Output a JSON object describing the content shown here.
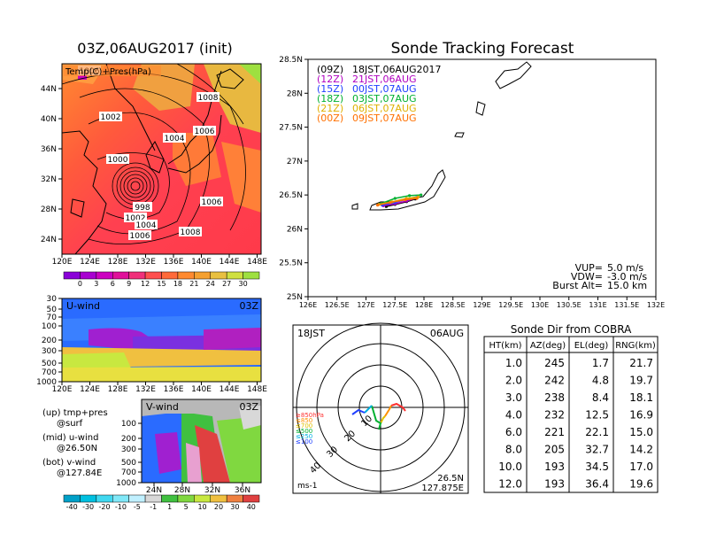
{
  "main_title": "03Z,06AUG2017 (init)",
  "right_title": "Sonde Tracking Forecast",
  "temp_map": {
    "label": "Temp(C)+Pres(hPa)",
    "lat_ticks": [
      "44N",
      "40N",
      "36N",
      "32N",
      "28N",
      "24N"
    ],
    "lon_ticks": [
      "120E",
      "124E",
      "128E",
      "132E",
      "136E",
      "140E",
      "144E",
      "148E"
    ],
    "isobar_labels": [
      "1006",
      "1008",
      "1002",
      "1006",
      "1004",
      "1000",
      "998",
      "1002",
      "1004",
      "1006",
      "1006",
      "1008"
    ],
    "colorbar_ticks": [
      "0",
      "3",
      "6",
      "9",
      "12",
      "15",
      "18",
      "21",
      "24",
      "27",
      "30"
    ],
    "colorbar_colors": [
      "#8a00d8",
      "#a800d0",
      "#cc00c0",
      "#e0109a",
      "#f0307a",
      "#ff4f4f",
      "#ff6a3a",
      "#ff8a30",
      "#f5a030",
      "#e8c040",
      "#cfe040",
      "#9ee040"
    ]
  },
  "uwind": {
    "label": "U-wind",
    "time": "03Z",
    "y_ticks": [
      "30",
      "50",
      "70",
      "100",
      "200",
      "300",
      "500",
      "700",
      "1000"
    ],
    "lon_ticks": [
      "120E",
      "124E",
      "128E",
      "132E",
      "136E",
      "140E",
      "144E",
      "148E"
    ]
  },
  "vwind": {
    "label": "V-wind",
    "time": "03Z",
    "y_ticks": [
      "100",
      "200",
      "300",
      "500",
      "700",
      "1000"
    ],
    "lat_ticks": [
      "24N",
      "28N",
      "32N",
      "36N"
    ]
  },
  "legend_notes": [
    {
      "line1": "(up) tmp+pres",
      "line2": "@surf"
    },
    {
      "line1": "(mid) u-wind",
      "line2": "@26.50N"
    },
    {
      "line1": "(bot) v-wind",
      "line2": "@127.84E"
    }
  ],
  "wind_colorbar": {
    "ticks": [
      "-40",
      "-30",
      "-20",
      "-10",
      "-5",
      "-1",
      "1",
      "5",
      "10",
      "20",
      "30",
      "40"
    ],
    "colors": [
      "#00a0c8",
      "#00c0e0",
      "#40d8f0",
      "#80e8f8",
      "#c0f0ff",
      "#d8d8d8",
      "#40c040",
      "#80d840",
      "#c8e840",
      "#f0c040",
      "#f08040",
      "#e04040"
    ]
  },
  "tracking": {
    "lat_ticks": [
      "28.5N",
      "28N",
      "27.5N",
      "27N",
      "26.5N",
      "26N",
      "25.5N",
      "25N"
    ],
    "lon_ticks": [
      "126E",
      "126.5E",
      "127E",
      "127.5E",
      "128E",
      "128.5E",
      "129E",
      "129.5E",
      "130E",
      "130.5E",
      "131E",
      "131.5E",
      "132E"
    ],
    "legend": [
      {
        "code": "(09Z)",
        "text": "18JST,06AUG2017",
        "color": "#000000"
      },
      {
        "code": "(12Z)",
        "text": "21JST,06AUG",
        "color": "#b000c0"
      },
      {
        "code": "(15Z)",
        "text": "00JST,07AUG",
        "color": "#2040ff"
      },
      {
        "code": "(18Z)",
        "text": "03JST,07AUG",
        "color": "#00b030"
      },
      {
        "code": "(21Z)",
        "text": "06JST,07AUG",
        "color": "#e0b000"
      },
      {
        "code": "(00Z)",
        "text": "09JST,07AUG",
        "color": "#ff7000"
      }
    ],
    "params": [
      {
        "label": "VUP=",
        "value": "5.0 m/s"
      },
      {
        "label": "VDW=",
        "value": "-3.0 m/s"
      },
      {
        "label": "Burst Alt=",
        "value": "15.0 km"
      }
    ]
  },
  "polar": {
    "time_label": "18JST",
    "date_label": "06AUG",
    "ring_labels": [
      "10",
      "20",
      "30",
      "40"
    ],
    "level_legend": [
      {
        "text": "≥850hPa",
        "color": "#ff3030"
      },
      {
        "text": "≤850",
        "color": "#ff9000"
      },
      {
        "text": "≤700",
        "color": "#e0c000"
      },
      {
        "text": "≤500",
        "color": "#00b030"
      },
      {
        "text": "≤250",
        "color": "#00b0e0"
      },
      {
        "text": "≤100",
        "color": "#2040ff"
      }
    ],
    "unit": "ms-1",
    "lat": "26.5N",
    "lon": "127.875E"
  },
  "sonde_table": {
    "title": "Sonde Dir from COBRA",
    "headers": [
      "HT(km)",
      "AZ(deg)",
      "EL(deg)",
      "RNG(km)"
    ],
    "rows": [
      [
        "1.0",
        "245",
        "1.7",
        "21.7"
      ],
      [
        "2.0",
        "242",
        "4.8",
        "19.7"
      ],
      [
        "3.0",
        "238",
        "8.4",
        "18.1"
      ],
      [
        "4.0",
        "232",
        "12.5",
        "16.9"
      ],
      [
        "6.0",
        "221",
        "22.1",
        "15.0"
      ],
      [
        "8.0",
        "205",
        "32.7",
        "14.2"
      ],
      [
        "10.0",
        "193",
        "34.5",
        "17.0"
      ],
      [
        "12.0",
        "193",
        "36.4",
        "19.6"
      ]
    ]
  },
  "chart_data": [
    {
      "type": "heatmap",
      "title": "03Z,06AUG2017 (init)",
      "subtitle": "Temp(C)+Pres(hPa)",
      "x_range": [
        120,
        150
      ],
      "y_range": [
        22,
        47
      ],
      "color_levels": [
        0,
        3,
        6,
        9,
        12,
        15,
        18,
        21,
        24,
        27,
        30
      ],
      "contour_labels_hPa": [
        1006,
        1008,
        1002,
        1006,
        1004,
        1000,
        998,
        1002,
        1004,
        1006,
        1006,
        1008
      ]
    },
    {
      "type": "line",
      "title": "Sonde Tracking Forecast",
      "x_range": [
        126,
        132
      ],
      "y_range": [
        25,
        28.5
      ],
      "series": [
        {
          "name": "(09Z) 18JST,06AUG2017",
          "x": [
            127.35,
            127.5,
            127.7,
            127.85
          ],
          "y": [
            26.33,
            26.36,
            26.4,
            26.44
          ]
        },
        {
          "name": "(12Z) 21JST,06AUG",
          "x": [
            127.3,
            127.5,
            127.7,
            127.88
          ],
          "y": [
            26.34,
            26.37,
            26.41,
            26.46
          ]
        },
        {
          "name": "(15Z) 00JST,07AUG",
          "x": [
            127.28,
            127.5,
            127.72,
            127.9
          ],
          "y": [
            26.35,
            26.39,
            26.44,
            26.48
          ]
        },
        {
          "name": "(18Z) 03JST,07AUG",
          "x": [
            127.25,
            127.5,
            127.75,
            127.95
          ],
          "y": [
            26.37,
            26.45,
            26.49,
            26.5
          ]
        },
        {
          "name": "(21Z) 06JST,07AUG",
          "x": [
            127.22,
            127.45,
            127.7,
            127.9
          ],
          "y": [
            26.36,
            26.4,
            26.45,
            26.47
          ]
        },
        {
          "name": "(00Z) 09JST,07AUG",
          "x": [
            127.2,
            127.42,
            127.68,
            127.88
          ],
          "y": [
            26.35,
            26.39,
            26.43,
            26.45
          ]
        }
      ]
    },
    {
      "type": "table",
      "title": "Sonde Dir from COBRA",
      "columns": [
        "HT(km)",
        "AZ(deg)",
        "EL(deg)",
        "RNG(km)"
      ],
      "rows": [
        [
          1.0,
          245,
          1.7,
          21.7
        ],
        [
          2.0,
          242,
          4.8,
          19.7
        ],
        [
          3.0,
          238,
          8.4,
          18.1
        ],
        [
          4.0,
          232,
          12.5,
          16.9
        ],
        [
          6.0,
          221,
          22.1,
          15.0
        ],
        [
          8.0,
          205,
          32.7,
          14.2
        ],
        [
          10.0,
          193,
          34.5,
          17.0
        ],
        [
          12.0,
          193,
          36.4,
          19.6
        ]
      ]
    }
  ]
}
